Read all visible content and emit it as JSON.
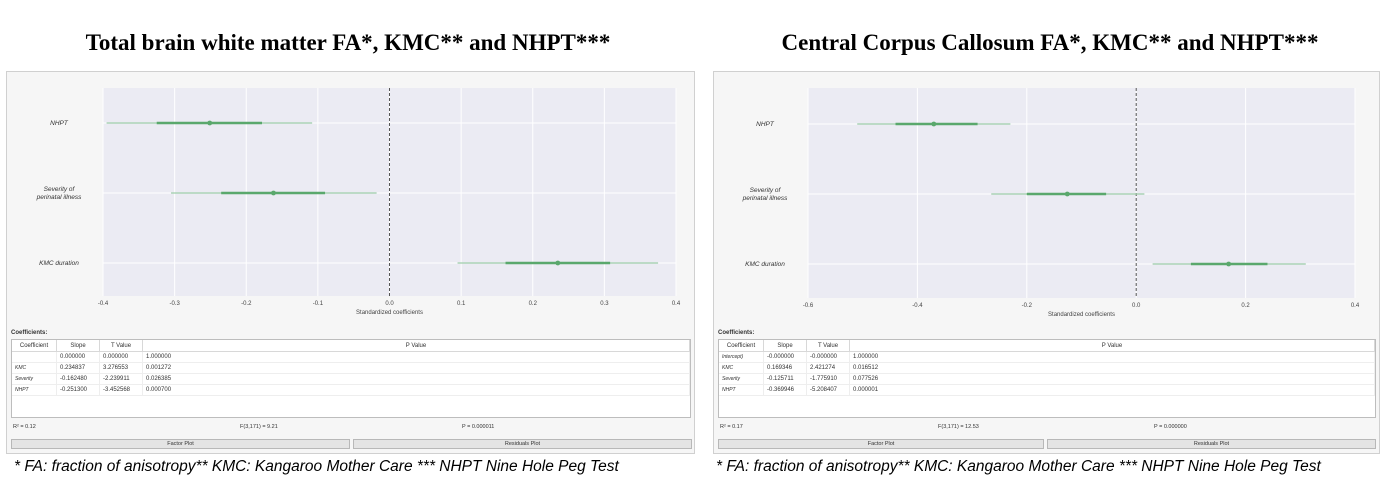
{
  "colors": {
    "plot_bg": "#ebebf3",
    "grid": "#ffffff",
    "series": "#5aa86c",
    "series_light": "#9fcfaa",
    "zero_line": "#555555"
  },
  "footnote": "* FA: fraction of anisotropy** KMC: Kangaroo Mother Care   *** NHPT Nine Hole Peg Test",
  "chart_data": [
    {
      "type": "scatter",
      "title": "Total brain white matter FA*, KMC** and NHPT***",
      "xlabel": "Standardized coefficients",
      "ylabel": "",
      "xlim": [
        -0.4,
        0.4
      ],
      "xticks": [
        "-0.4",
        "-0.3",
        "-0.2",
        "-0.1",
        "0.0",
        "0.1",
        "0.2",
        "0.3",
        "0.4"
      ],
      "grid": true,
      "categories": [
        "NHPT",
        "Severity of perinatal illness",
        "KMC duration"
      ],
      "category_lines": [
        [
          "NHPT"
        ],
        [
          "Severity of",
          "perinatal illness"
        ],
        [
          "KMC duration"
        ]
      ],
      "estimates": [
        -0.251,
        -0.162,
        0.235
      ],
      "ci_inner": [
        [
          -0.325,
          -0.178
        ],
        [
          -0.235,
          -0.09
        ],
        [
          0.162,
          0.308
        ]
      ],
      "ci_outer": [
        [
          -0.395,
          -0.108
        ],
        [
          -0.305,
          -0.018
        ],
        [
          0.095,
          0.375
        ]
      ],
      "coefficients_label": "Coefficients:",
      "table": {
        "columns": [
          "Coefficient",
          "Slope",
          "T Value",
          "P Value"
        ],
        "rows": [
          {
            "name": "",
            "slope": "0.000000",
            "t": "0.000000",
            "p": "1.000000"
          },
          {
            "name": "KMC",
            "slope": "0.234837",
            "t": "3.276553",
            "p": "0.001272"
          },
          {
            "name": "Severity",
            "slope": "-0.162480",
            "t": "-2.239911",
            "p": "0.026385"
          },
          {
            "name": "NHPT",
            "slope": "-0.251300",
            "t": "-3.452568",
            "p": "0.000700"
          }
        ]
      },
      "stats": {
        "r2": "R² = 0.12",
        "f": "F(3,171) = 9.21",
        "p": "P = 0.000011"
      },
      "buttons": {
        "factor": "Factor Plot",
        "residuals": "Residuals Plot"
      }
    },
    {
      "type": "scatter",
      "title": "Central Corpus Callosum FA*, KMC** and NHPT***",
      "xlabel": "Standardized coefficients",
      "ylabel": "",
      "xlim": [
        -0.6,
        0.4
      ],
      "xticks": [
        "-0.6",
        "-0.4",
        "-0.2",
        "0.0",
        "0.2",
        "0.4"
      ],
      "grid": true,
      "categories": [
        "NHPT",
        "Severity of perinatal illness",
        "KMC duration"
      ],
      "category_lines": [
        [
          "NHPT"
        ],
        [
          "Severity of",
          "perinatal illness"
        ],
        [
          "KMC duration"
        ]
      ],
      "estimates": [
        -0.37,
        -0.126,
        0.169
      ],
      "ci_inner": [
        [
          -0.44,
          -0.29
        ],
        [
          -0.2,
          -0.055
        ],
        [
          0.1,
          0.24
        ]
      ],
      "ci_outer": [
        [
          -0.51,
          -0.23
        ],
        [
          -0.265,
          0.015
        ],
        [
          0.03,
          0.31
        ]
      ],
      "coefficients_label": "Coefficients:",
      "table": {
        "columns": [
          "Coefficient",
          "Slope",
          "T Value",
          "P Value"
        ],
        "rows": [
          {
            "name": "Intercept)",
            "slope": "-0.000000",
            "t": "-0.000000",
            "p": "1.000000"
          },
          {
            "name": "KMC",
            "slope": "0.169346",
            "t": "2.421274",
            "p": "0.016512"
          },
          {
            "name": "Severity",
            "slope": "-0.125711",
            "t": "-1.775910",
            "p": "0.077526"
          },
          {
            "name": "NHPT",
            "slope": "-0.369946",
            "t": "-5.208407",
            "p": "0.000001"
          }
        ]
      },
      "stats": {
        "r2": "R² = 0.17",
        "f": "F(3,171) = 12.53",
        "p": "P = 0.000000"
      },
      "buttons": {
        "factor": "Factor Plot",
        "residuals": "Residuals Plot"
      }
    }
  ]
}
